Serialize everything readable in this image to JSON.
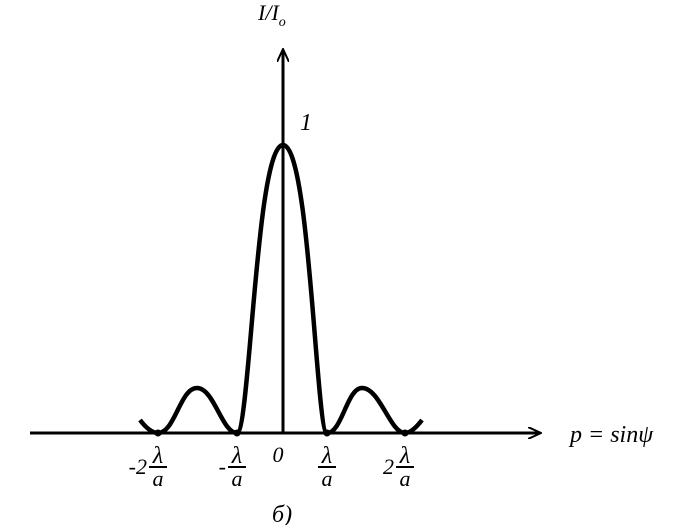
{
  "axes": {
    "y_label": {
      "main": "I/I",
      "sub": "o"
    },
    "x_label": "p = sinψ",
    "y_mark": "1",
    "origin": "0"
  },
  "ticks": [
    {
      "coef": "-2",
      "num": "λ",
      "den": "a"
    },
    {
      "coef": "-",
      "num": "λ",
      "den": "a"
    },
    {
      "num": "λ",
      "den": "a"
    },
    {
      "coef": "2",
      "num": "λ",
      "den": "a"
    }
  ],
  "caption": "б)"
}
